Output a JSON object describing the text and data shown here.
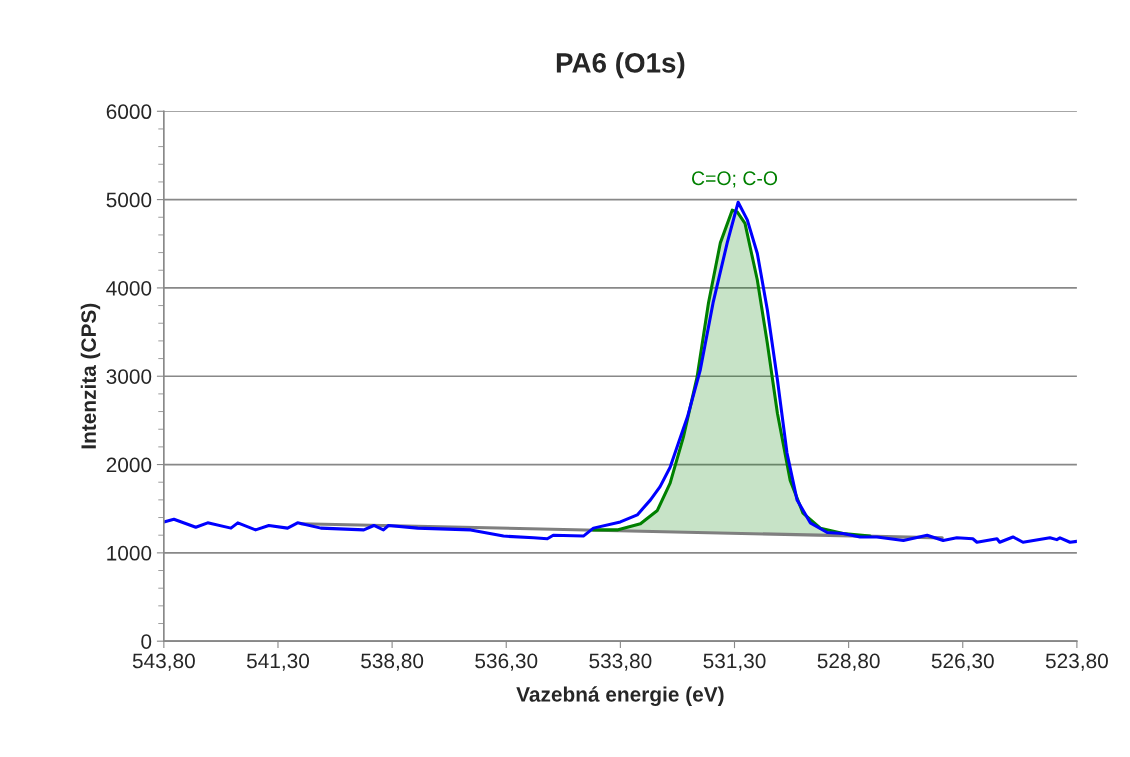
{
  "chart_data": {
    "type": "line",
    "title": "PA6 (O1s)",
    "xlabel": "Vazebná energie (eV)",
    "ylabel": "Intenzita (CPS)",
    "xlim": [
      543.8,
      523.8
    ],
    "xticks": [
      {
        "value": 543.8,
        "label": "543,80"
      },
      {
        "value": 541.3,
        "label": "541,30"
      },
      {
        "value": 538.8,
        "label": "538,80"
      },
      {
        "value": 536.3,
        "label": "536,30"
      },
      {
        "value": 533.8,
        "label": "533,80"
      },
      {
        "value": 531.3,
        "label": "531,30"
      },
      {
        "value": 528.8,
        "label": "528,80"
      },
      {
        "value": 526.3,
        "label": "526,30"
      },
      {
        "value": 523.8,
        "label": "523,80"
      }
    ],
    "ylim": [
      0,
      6000
    ],
    "yticks": [
      0,
      1000,
      2000,
      3000,
      4000,
      5000,
      6000
    ],
    "grid": "y",
    "legend": false,
    "series": [
      {
        "color": "#7f7f7f",
        "x": [
          540.8,
          526.75
        ],
        "values": [
          1330,
          1170
        ]
      },
      {
        "type": "area",
        "color": "#008000",
        "x": [
          534.4,
          533.87,
          533.36,
          532.99,
          532.71,
          532.42,
          532.12,
          531.87,
          531.61,
          531.35,
          531.24,
          531.07,
          530.8,
          530.58,
          530.36,
          530.08,
          529.8,
          529.42,
          528.92,
          528.33
        ],
        "values": [
          1260,
          1260,
          1330,
          1480,
          1790,
          2310,
          2990,
          3830,
          4510,
          4880,
          4860,
          4730,
          4090,
          3370,
          2580,
          1820,
          1450,
          1280,
          1220,
          1190
        ]
      },
      {
        "color": "#0000ff",
        "x": [
          543.8,
          543.58,
          543.1,
          542.84,
          542.33,
          542.18,
          541.79,
          541.5,
          541.09,
          540.87,
          540.36,
          539.42,
          539.2,
          538.99,
          538.88,
          538.24,
          537.08,
          536.36,
          535.7,
          535.4,
          535.27,
          534.61,
          534.39,
          533.8,
          533.43,
          533.14,
          532.93,
          532.71,
          532.53,
          532.33,
          532.05,
          531.77,
          531.46,
          531.22,
          531.02,
          530.8,
          530.58,
          530.36,
          530.15,
          529.93,
          529.64,
          529.27,
          528.92,
          528.55,
          528.18,
          527.6,
          527.08,
          526.73,
          526.43,
          526.08,
          525.99,
          525.55,
          525.49,
          525.2,
          524.98,
          524.39,
          524.24,
          524.17,
          523.95,
          523.8
        ],
        "values": [
          1350,
          1380,
          1290,
          1340,
          1280,
          1340,
          1260,
          1310,
          1280,
          1340,
          1280,
          1260,
          1310,
          1260,
          1310,
          1280,
          1260,
          1190,
          1170,
          1160,
          1200,
          1190,
          1280,
          1350,
          1430,
          1600,
          1750,
          1970,
          2240,
          2540,
          3070,
          3830,
          4510,
          4970,
          4770,
          4390,
          3750,
          2960,
          2130,
          1600,
          1340,
          1230,
          1220,
          1180,
          1180,
          1140,
          1200,
          1140,
          1170,
          1160,
          1120,
          1160,
          1120,
          1180,
          1120,
          1170,
          1150,
          1170,
          1120,
          1130
        ]
      }
    ],
    "annotations": [
      {
        "text": "C=O; C-O",
        "x": 531.3,
        "y": 4900
      }
    ]
  }
}
